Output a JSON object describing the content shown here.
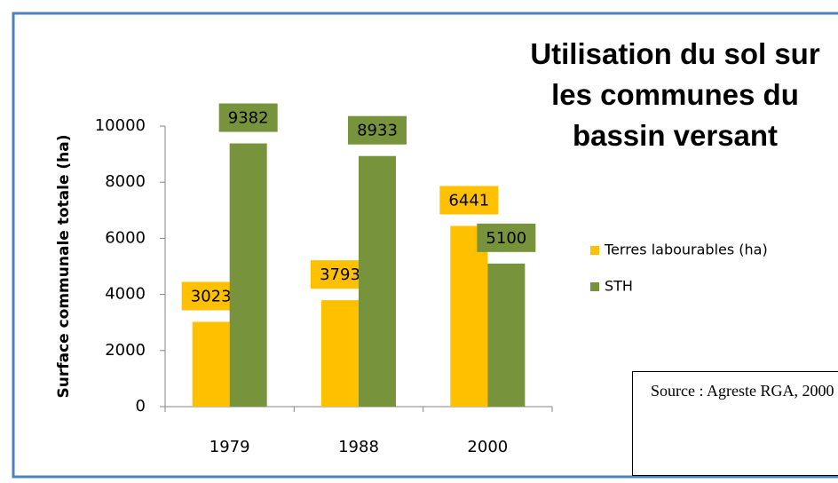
{
  "chart_data": {
    "type": "bar",
    "title": "Utilisation du sol sur les communes du bassin versant",
    "ylabel": "Surface communale  totale (ha)",
    "categories": [
      "1979",
      "1988",
      "2000"
    ],
    "series": [
      {
        "name": "Terres labourables (ha)",
        "color": "#ffc000",
        "values": [
          3023,
          3793,
          6441
        ]
      },
      {
        "name": "STH",
        "color": "#77933c",
        "values": [
          9382,
          8933,
          5100
        ]
      }
    ],
    "ylim": [
      0,
      10000
    ],
    "yticks": [
      0,
      2000,
      4000,
      6000,
      8000,
      10000
    ],
    "grid": false,
    "legend": "right",
    "source": "Source : Agreste RGA, 2000"
  }
}
